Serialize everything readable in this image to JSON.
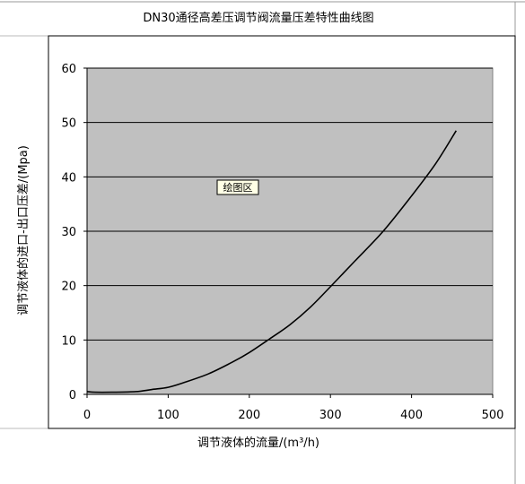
{
  "chart_data": {
    "type": "line",
    "title": "DN30通径高差压调节阀流量压差特性曲线图",
    "xlabel": "调节液体的流量/(m³/h)",
    "ylabel": "调节液体的进口-出口压差/(Mpa)",
    "plot_area_label": "绘图区",
    "xlim": [
      0,
      500
    ],
    "ylim": [
      0,
      60
    ],
    "xticks": [
      0,
      100,
      200,
      300,
      400,
      500
    ],
    "yticks": [
      0,
      10,
      20,
      30,
      40,
      50,
      60
    ],
    "grid": "horizontal",
    "plot_background": "#c0c0c0",
    "line_color": "#000000",
    "legend": "none",
    "series": [
      {
        "x": [
          0,
          10,
          30,
          60,
          80,
          100,
          120,
          150,
          180,
          200,
          225,
          250,
          275,
          300,
          330,
          365,
          400,
          430,
          455
        ],
        "y": [
          0.5,
          0.4,
          0.4,
          0.5,
          0.9,
          1.3,
          2.2,
          3.8,
          6.0,
          7.7,
          10.2,
          12.8,
          16.0,
          19.8,
          24.5,
          30.0,
          36.5,
          42.5,
          48.5
        ]
      }
    ]
  }
}
